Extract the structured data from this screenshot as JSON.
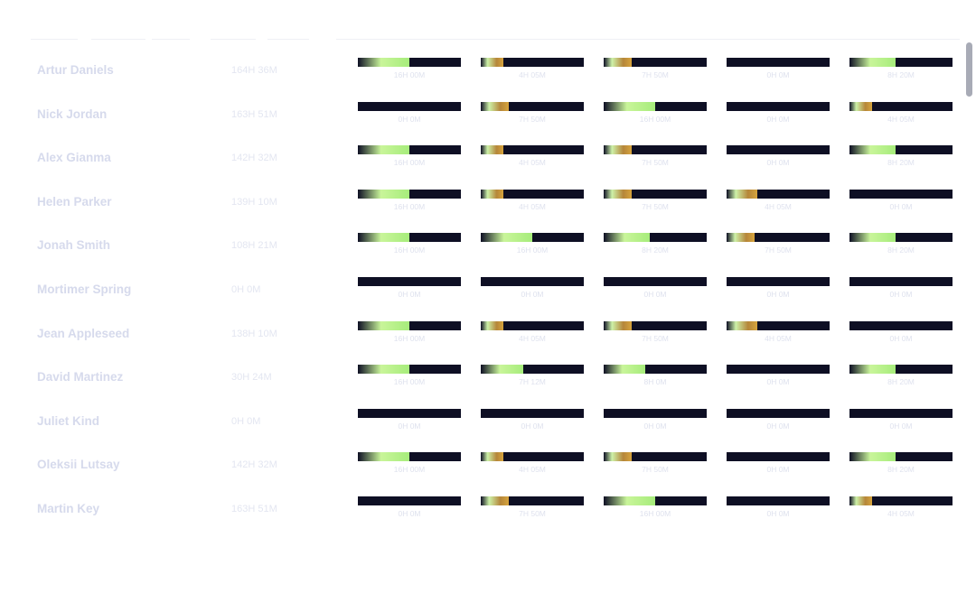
{
  "columns": [
    {
      "label": "",
      "width": 52
    },
    {
      "label": "",
      "width": 60
    },
    {
      "label": "",
      "width": 42
    },
    {
      "label": "",
      "width": 50
    },
    {
      "label": "",
      "width": 46
    },
    {
      "label": "",
      "width": 46
    }
  ],
  "rows": [
    {
      "name": "Artur Daniels",
      "total": "164H 36M",
      "days": [
        {
          "label": "16H 00M",
          "fill": 0.5
        },
        {
          "label": "4H 05M",
          "fill": 0.22
        },
        {
          "label": "7H 50M",
          "fill": 0.27
        },
        {
          "label": "0H 0M",
          "fill": 0
        },
        {
          "label": "8H 20M",
          "fill": 0.45
        }
      ]
    },
    {
      "name": "Nick Jordan",
      "total": "163H 51M",
      "days": [
        {
          "label": "0H 0M",
          "fill": 0
        },
        {
          "label": "7H 50M",
          "fill": 0.27
        },
        {
          "label": "16H 00M",
          "fill": 0.5
        },
        {
          "label": "0H 0M",
          "fill": 0
        },
        {
          "label": "4H 05M",
          "fill": 0.22
        }
      ]
    },
    {
      "name": "Alex Gianma",
      "total": "142H 32M",
      "days": [
        {
          "label": "16H 00M",
          "fill": 0.5
        },
        {
          "label": "4H 05M",
          "fill": 0.22
        },
        {
          "label": "7H 50M",
          "fill": 0.27
        },
        {
          "label": "0H 0M",
          "fill": 0
        },
        {
          "label": "8H 20M",
          "fill": 0.45
        }
      ]
    },
    {
      "name": "Helen Parker",
      "total": "139H 10M",
      "days": [
        {
          "label": "16H 00M",
          "fill": 0.5
        },
        {
          "label": "4H 05M",
          "fill": 0.22
        },
        {
          "label": "7H 50M",
          "fill": 0.27
        },
        {
          "label": "4H 05M",
          "fill": 0.3
        },
        {
          "label": "0H 0M",
          "fill": 0
        }
      ]
    },
    {
      "name": "Jonah Smith",
      "total": "108H 21M",
      "days": [
        {
          "label": "16H 00M",
          "fill": 0.5
        },
        {
          "label": "16H 00M",
          "fill": 0.5
        },
        {
          "label": "8H 20M",
          "fill": 0.45
        },
        {
          "label": "7H 50M",
          "fill": 0.27
        },
        {
          "label": "8H 20M",
          "fill": 0.45
        }
      ]
    },
    {
      "name": "Mortimer Spring",
      "total": "0H 0M",
      "days": [
        {
          "label": "0H 0M",
          "fill": 0
        },
        {
          "label": "0H 0M",
          "fill": 0
        },
        {
          "label": "0H 0M",
          "fill": 0
        },
        {
          "label": "0H 0M",
          "fill": 0
        },
        {
          "label": "0H 0M",
          "fill": 0
        }
      ]
    },
    {
      "name": "Jean Appleseed",
      "total": "138H 10M",
      "days": [
        {
          "label": "16H 00M",
          "fill": 0.5
        },
        {
          "label": "4H 05M",
          "fill": 0.22
        },
        {
          "label": "7H 50M",
          "fill": 0.27
        },
        {
          "label": "4H 05M",
          "fill": 0.3
        },
        {
          "label": "0H 0M",
          "fill": 0
        }
      ]
    },
    {
      "name": "David Martinez",
      "total": "30H 24M",
      "days": [
        {
          "label": "16H 00M",
          "fill": 0.5
        },
        {
          "label": "7H 12M",
          "fill": 0.41
        },
        {
          "label": "8H 0M",
          "fill": 0.4
        },
        {
          "label": "0H 0M",
          "fill": 0
        },
        {
          "label": "8H 20M",
          "fill": 0.45
        }
      ]
    },
    {
      "name": "Juliet Kind",
      "total": "0H 0M",
      "days": [
        {
          "label": "0H 0M",
          "fill": 0
        },
        {
          "label": "0H 0M",
          "fill": 0
        },
        {
          "label": "0H 0M",
          "fill": 0
        },
        {
          "label": "0H 0M",
          "fill": 0
        },
        {
          "label": "0H 0M",
          "fill": 0
        }
      ]
    },
    {
      "name": "Oleksii Lutsay",
      "total": "142H 32M",
      "days": [
        {
          "label": "16H 00M",
          "fill": 0.5
        },
        {
          "label": "4H 05M",
          "fill": 0.22
        },
        {
          "label": "7H 50M",
          "fill": 0.27
        },
        {
          "label": "0H 0M",
          "fill": 0
        },
        {
          "label": "8H 20M",
          "fill": 0.45
        }
      ]
    },
    {
      "name": "Martin Key",
      "total": "163H 51M",
      "days": [
        {
          "label": "0H 0M",
          "fill": 0
        },
        {
          "label": "7H 50M",
          "fill": 0.27
        },
        {
          "label": "16H 00M",
          "fill": 0.5
        },
        {
          "label": "0H 0M",
          "fill": 0
        },
        {
          "label": "4H 05M",
          "fill": 0.22
        }
      ]
    }
  ],
  "colors": {
    "bar_track": "#0e0f24",
    "bar_fill_green": "#a6ec7b",
    "bar_fill_amber": "#d7a43d",
    "text_faint": "#d6daec"
  }
}
